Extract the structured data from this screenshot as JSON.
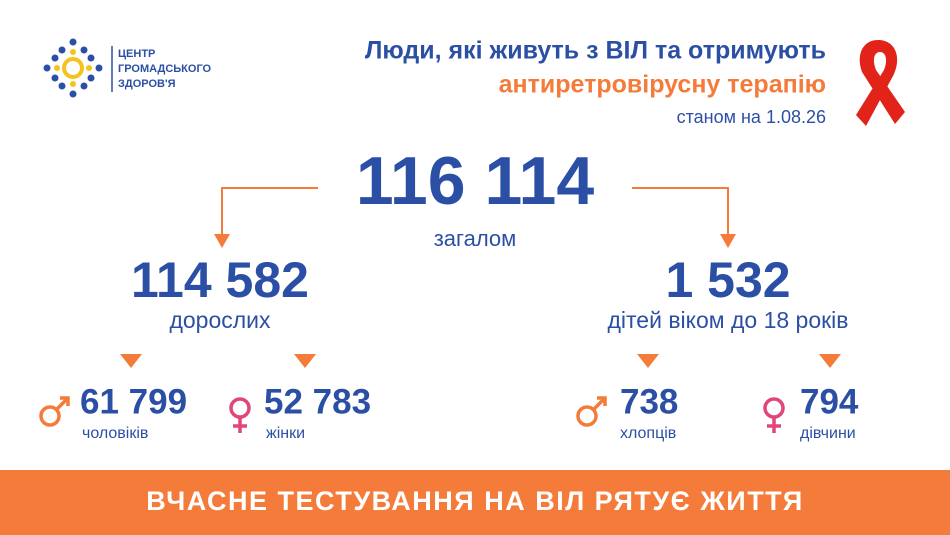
{
  "header": {
    "logo_text": [
      "ЦЕНТР",
      "ГРОМАДСЬКОГО",
      "ЗДОРОВ'Я"
    ],
    "title_line1": "Люди, які живуть з ВІЛ та отримують",
    "title_line2": "антиретровірусну терапію",
    "subtitle": "станом на 1.08.26"
  },
  "total": {
    "value": "116 114",
    "label": "загалом"
  },
  "groups": [
    {
      "value": "114 582",
      "label": "дорослих",
      "breakdown": [
        {
          "value": "61 799",
          "label": "чоловіків"
        },
        {
          "value": "52 783",
          "label": "жінки"
        }
      ]
    },
    {
      "value": "1 532",
      "label": "дітей віком до 18 років",
      "breakdown": [
        {
          "value": "738",
          "label": "хлопців"
        },
        {
          "value": "794",
          "label": "дівчини"
        }
      ]
    }
  ],
  "banner": "ВЧАСНЕ ТЕСТУВАННЯ НА ВІЛ РЯТУЄ ЖИТТЯ"
}
